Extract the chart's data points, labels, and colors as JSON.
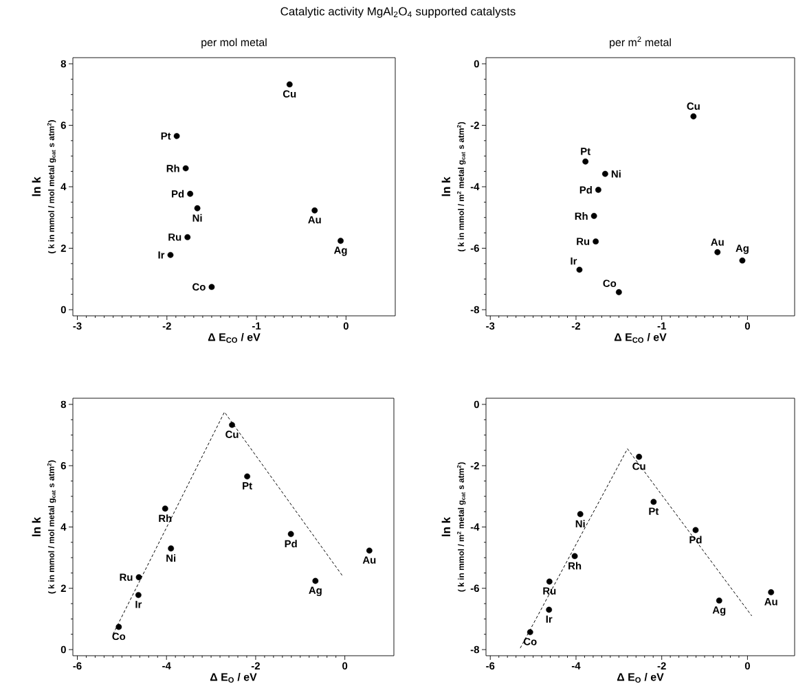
{
  "chart_data": [
    {
      "type": "scatter",
      "title": "Catalytic activity MgAl$_{2}$O$_{4}$ supported catalysts",
      "subtitle": "per mol metal",
      "xlabel": "Δ E$_{CO}$  / eV",
      "ylabel": "ln k",
      "xlim": [
        -3.05,
        0.55
      ],
      "ylim": [
        -0.2,
        8.2
      ],
      "xticks": [
        -3,
        -2,
        -1,
        0
      ],
      "yticks": [
        0,
        2,
        4,
        6,
        8
      ],
      "annotations": [
        "( k in mmol / mol metal g$_{cat}$ s atm$^{2}$)",
        {
          "text": "Co",
          "x": -1.5,
          "y": 0.74
        },
        {
          "text": "Ir",
          "x": -1.96,
          "y": 1.78
        },
        {
          "text": "Ru",
          "x": -1.77,
          "y": 2.36
        },
        {
          "text": "Rh",
          "x": -1.79,
          "y": 4.6
        },
        {
          "text": "Ni",
          "x": -1.66,
          "y": 3.3
        },
        {
          "text": "Cu",
          "x": -0.63,
          "y": 7.33
        },
        {
          "text": "Pt",
          "x": -1.89,
          "y": 5.65
        },
        {
          "text": "Pd",
          "x": -1.74,
          "y": 3.77
        },
        {
          "text": "Ag",
          "x": -0.06,
          "y": 2.24
        },
        {
          "text": "Au",
          "x": -0.35,
          "y": 3.23
        }
      ],
      "series": [
        {
          "color": "#000000",
          "marker": "circle",
          "x": [
            -1.5,
            -1.96,
            -1.77,
            -1.79,
            -1.66,
            -0.63,
            -1.89,
            -1.74,
            -0.06,
            -0.35
          ],
          "values": [
            0.74,
            1.78,
            2.36,
            4.6,
            3.3,
            7.33,
            5.65,
            3.77,
            2.24,
            3.23
          ]
        }
      ]
    },
    {
      "type": "scatter",
      "subtitle": "per m$^{2}$ metal",
      "xlabel": "Δ E$_{CO}$  / eV",
      "ylabel": "ln k",
      "xlim": [
        -3.05,
        0.55
      ],
      "ylim": [
        -8.2,
        0.2
      ],
      "xticks": [
        -3,
        -2,
        -1,
        0
      ],
      "yticks": [
        -8,
        -6,
        -4,
        -2,
        0
      ],
      "annotations": [
        "( k in mmol / m$^{2}$ metal g$_{cat}$ s atm$^{2}$)",
        {
          "text": "Co",
          "x": -1.5,
          "y": -7.43
        },
        {
          "text": "Ir",
          "x": -1.96,
          "y": -6.7
        },
        {
          "text": "Ru",
          "x": -1.77,
          "y": -5.78
        },
        {
          "text": "Rh",
          "x": -1.79,
          "y": -4.95
        },
        {
          "text": "Ni",
          "x": -1.66,
          "y": -3.58
        },
        {
          "text": "Cu",
          "x": -0.63,
          "y": -1.71
        },
        {
          "text": "Pt",
          "x": -1.89,
          "y": -3.18
        },
        {
          "text": "Pd",
          "x": -1.74,
          "y": -4.1
        },
        {
          "text": "Ag",
          "x": -0.06,
          "y": -6.4
        },
        {
          "text": "Au",
          "x": -0.35,
          "y": -6.13
        }
      ],
      "series": [
        {
          "color": "#000000",
          "marker": "circle",
          "x": [
            -1.5,
            -1.96,
            -1.77,
            -1.79,
            -1.66,
            -0.63,
            -1.89,
            -1.74,
            -0.06,
            -0.35
          ],
          "values": [
            -7.43,
            -6.7,
            -5.78,
            -4.95,
            -3.58,
            -1.71,
            -3.18,
            -4.1,
            -6.4,
            -6.13
          ]
        }
      ]
    },
    {
      "type": "scatter",
      "xlabel": "Δ E$_{O}$  / eV",
      "ylabel": "ln k",
      "xlim": [
        -6.1,
        1.1
      ],
      "ylim": [
        -0.2,
        8.2
      ],
      "xticks": [
        -6,
        -4,
        -2,
        0
      ],
      "yticks": [
        0,
        2,
        4,
        6,
        8
      ],
      "annotations": [
        "( k in mmol / mol metal g$_{cat}$ s atm$^{2}$)",
        {
          "text": "Co",
          "x": -5.07,
          "y": 0.74
        },
        {
          "text": "Ir",
          "x": -4.63,
          "y": 1.78
        },
        {
          "text": "Ru",
          "x": -4.62,
          "y": 2.36
        },
        {
          "text": "Rh",
          "x": -4.03,
          "y": 4.6
        },
        {
          "text": "Ni",
          "x": -3.9,
          "y": 3.3
        },
        {
          "text": "Cu",
          "x": -2.53,
          "y": 7.33
        },
        {
          "text": "Pt",
          "x": -2.19,
          "y": 5.65
        },
        {
          "text": "Pd",
          "x": -1.21,
          "y": 3.77
        },
        {
          "text": "Ag",
          "x": -0.66,
          "y": 2.24
        },
        {
          "text": "Au",
          "x": 0.55,
          "y": 3.23
        }
      ],
      "series": [
        {
          "color": "#000000",
          "marker": "circle",
          "x": [
            -5.07,
            -4.63,
            -4.62,
            -4.03,
            -3.9,
            -2.53,
            -2.19,
            -1.21,
            -0.66,
            0.55
          ],
          "values": [
            0.74,
            1.78,
            2.36,
            4.6,
            3.3,
            7.33,
            5.65,
            3.77,
            2.24,
            3.23
          ]
        },
        {
          "type": "line",
          "color": "#000000",
          "marker": "none",
          "line_style": "dashed",
          "x": [
            -5.2,
            -2.7,
            -0.05
          ],
          "values": [
            0.5,
            7.75,
            2.4
          ]
        }
      ]
    },
    {
      "type": "scatter",
      "xlabel": "Δ E$_{O}$  / eV",
      "ylabel": "ln k",
      "xlim": [
        -6.1,
        1.1
      ],
      "ylim": [
        -8.2,
        0.2
      ],
      "xticks": [
        -6,
        -4,
        -2,
        0
      ],
      "yticks": [
        -8,
        -6,
        -4,
        -2,
        0
      ],
      "annotations": [
        "( k in mmol / m$^{2}$ metal g$_{cat}$ s atm$^{2}$)",
        {
          "text": "Co",
          "x": -5.07,
          "y": -7.43
        },
        {
          "text": "Ir",
          "x": -4.63,
          "y": -6.7
        },
        {
          "text": "Ru",
          "x": -4.62,
          "y": -5.78
        },
        {
          "text": "Rh",
          "x": -4.03,
          "y": -4.95
        },
        {
          "text": "Ni",
          "x": -3.9,
          "y": -3.58
        },
        {
          "text": "Cu",
          "x": -2.53,
          "y": -1.71
        },
        {
          "text": "Pt",
          "x": -2.19,
          "y": -3.18
        },
        {
          "text": "Pd",
          "x": -1.21,
          "y": -4.1
        },
        {
          "text": "Ag",
          "x": -0.66,
          "y": -6.4
        },
        {
          "text": "Au",
          "x": 0.55,
          "y": -6.13
        }
      ],
      "series": [
        {
          "color": "#000000",
          "marker": "circle",
          "x": [
            -5.07,
            -4.63,
            -4.62,
            -4.03,
            -3.9,
            -2.53,
            -2.19,
            -1.21,
            -0.66,
            0.55
          ],
          "values": [
            -7.43,
            -6.7,
            -5.78,
            -4.95,
            -3.58,
            -1.71,
            -3.18,
            -4.1,
            -6.4,
            -6.13
          ]
        },
        {
          "type": "line",
          "color": "#000000",
          "marker": "none",
          "line_style": "dashed",
          "x": [
            -5.3,
            -2.8,
            0.1
          ],
          "values": [
            -7.95,
            -1.45,
            -6.9
          ]
        }
      ]
    }
  ]
}
